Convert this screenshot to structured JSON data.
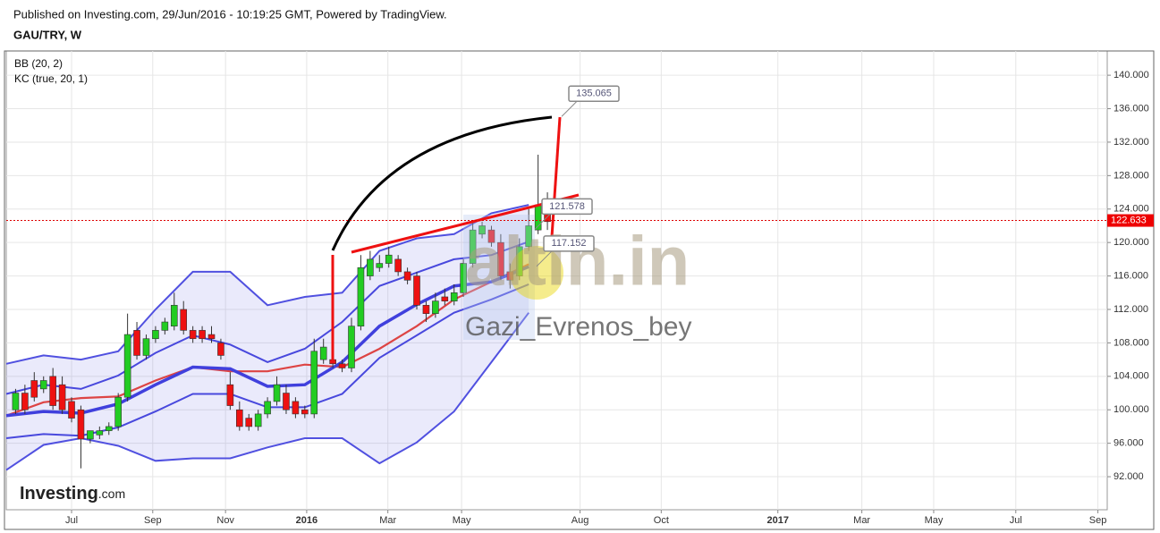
{
  "header": {
    "published": "Published on Investing.com, 29/Jun/2016 - 10:19:25 GMT, Powered by TradingView.",
    "symbol": "GAU/TRY, W"
  },
  "chart_data": {
    "type": "candlestick",
    "xlim": [
      0,
      118
    ],
    "ylim": [
      88.05,
      142.9
    ],
    "xticks": [
      {
        "value": 7.0,
        "label": "Jul"
      },
      {
        "value": 15.7,
        "label": "Sep"
      },
      {
        "value": 23.5,
        "label": "Nov"
      },
      {
        "value": 32.2,
        "label": "2016"
      },
      {
        "value": 40.9,
        "label": "Mar"
      },
      {
        "value": 48.8,
        "label": "May"
      },
      {
        "value": 61.5,
        "label": "Aug"
      },
      {
        "value": 70.2,
        "label": "Oct"
      },
      {
        "value": 82.7,
        "label": "2017"
      },
      {
        "value": 91.7,
        "label": "Mar"
      },
      {
        "value": 99.4,
        "label": "May"
      },
      {
        "value": 108.2,
        "label": "Jul"
      },
      {
        "value": 117.0,
        "label": "Sep"
      }
    ],
    "yticks": [
      {
        "value": 92,
        "label": "92.000"
      },
      {
        "value": 96,
        "label": "96.000"
      },
      {
        "value": 100,
        "label": "100.000"
      },
      {
        "value": 104,
        "label": "104.000"
      },
      {
        "value": 108,
        "label": "108.000"
      },
      {
        "value": 112,
        "label": "112.000"
      },
      {
        "value": 116,
        "label": "116.000"
      },
      {
        "value": 120,
        "label": "120.000"
      },
      {
        "value": 124,
        "label": "124.000"
      },
      {
        "value": 128,
        "label": "128.000"
      },
      {
        "value": 132,
        "label": "132.000"
      },
      {
        "value": 136,
        "label": "136.000"
      },
      {
        "value": 140,
        "label": "140.000"
      }
    ],
    "grid": true,
    "up_color": "#22cc22",
    "down_color": "#ee1111",
    "x": [
      1,
      2,
      3,
      4,
      5,
      6,
      7,
      8,
      9,
      10,
      11,
      12,
      13,
      14,
      15,
      16,
      17,
      18,
      19,
      20,
      21,
      22,
      23,
      24,
      25,
      26,
      27,
      28,
      29,
      30,
      31,
      32,
      33,
      34,
      35,
      36,
      37,
      38,
      39,
      40,
      41,
      42,
      43,
      44,
      45,
      46,
      47,
      48,
      49,
      50,
      51,
      52,
      53,
      54,
      55,
      56,
      57,
      58
    ],
    "open": [
      100,
      102,
      103.5,
      102.5,
      104,
      103,
      101,
      100,
      96.5,
      97,
      97.5,
      98,
      101.5,
      109.5,
      106.5,
      108.5,
      109.5,
      110,
      112,
      109.5,
      109.5,
      109,
      108,
      103,
      100,
      99,
      98,
      99.5,
      101,
      102,
      101,
      100,
      99.5,
      106,
      106,
      105.5,
      105,
      110,
      116,
      117,
      117.5,
      118,
      116.5,
      116,
      112.5,
      111.5,
      113.5,
      113,
      114,
      117.5,
      121,
      121.5,
      120,
      116.5,
      116,
      119.5,
      121.5,
      125
    ],
    "high": [
      102.5,
      103,
      104.5,
      104,
      105,
      104,
      101.5,
      100.5,
      97.5,
      98,
      98.5,
      102,
      111.5,
      110.5,
      109,
      110,
      111,
      114,
      113,
      110,
      110,
      110,
      108.5,
      104.5,
      101,
      99.5,
      100,
      101.5,
      104,
      103,
      101.5,
      100.5,
      108.5,
      108.5,
      107,
      106,
      111,
      118.5,
      119,
      118.5,
      119.5,
      118.5,
      117,
      116.5,
      113,
      114,
      114.5,
      115,
      118,
      122.5,
      122.5,
      122,
      121,
      117.5,
      120.5,
      124,
      130.5,
      126
    ],
    "low": [
      99.5,
      99.5,
      101,
      102,
      100,
      99.5,
      98.5,
      93,
      96,
      96.5,
      97,
      97.5,
      101,
      106,
      106,
      108,
      109,
      109.5,
      109,
      108,
      108,
      108,
      106,
      100,
      97.5,
      97.5,
      97.5,
      99,
      100.5,
      99.5,
      99,
      99,
      99,
      105.5,
      105,
      104.5,
      104.5,
      109.5,
      115.5,
      116.5,
      117,
      116,
      115,
      112,
      110.5,
      111,
      112.5,
      112.5,
      113.5,
      117,
      120.5,
      119.5,
      115.5,
      114.5,
      115.5,
      119,
      121,
      121.5
    ],
    "close": [
      102,
      100,
      101.5,
      103.5,
      100.5,
      100,
      99,
      96.5,
      97.5,
      97.5,
      98,
      101.5,
      109,
      106.5,
      108.5,
      109.5,
      110.5,
      112.5,
      109.5,
      108.5,
      108.5,
      108.5,
      106.5,
      100.5,
      98,
      98,
      99.5,
      101,
      103,
      100,
      99.5,
      99.5,
      107,
      107.5,
      105.5,
      105,
      110,
      117,
      118,
      117.5,
      118.5,
      116.5,
      115.5,
      112.5,
      111.5,
      113,
      113,
      114,
      117.5,
      121.5,
      122,
      120,
      116,
      115.5,
      119.5,
      122,
      124.5,
      122.5
    ],
    "indicators": [
      {
        "name": "BB (20, 2)",
        "color": "#5050e0",
        "middle_color": "#dd4444",
        "x": [
          0,
          4,
          8,
          12,
          16,
          20,
          24,
          28,
          32,
          36,
          40,
          44,
          48,
          52,
          56
        ],
        "upper": [
          105.5,
          106.5,
          106,
          107,
          112,
          116.5,
          116.5,
          112.5,
          113.5,
          114,
          119,
          120.5,
          121,
          123.5,
          124.5
        ],
        "middle": [
          99.3,
          100.9,
          101.4,
          101.6,
          103.5,
          105.1,
          104.6,
          104.6,
          105.4,
          105.1,
          107.3,
          110,
          113.2,
          115.3,
          117.4
        ],
        "lower": [
          92.8,
          95.8,
          96.6,
          95.7,
          93.9,
          94.2,
          94.2,
          95.5,
          96.6,
          96.6,
          93.6,
          96.1,
          99.8,
          105.7,
          111.6
        ]
      },
      {
        "name": "KC (true, 20, 1)",
        "color": "#4848dd",
        "middle_color": "#4040dd",
        "x": [
          0,
          4,
          8,
          12,
          16,
          20,
          24,
          28,
          32,
          36,
          40,
          44,
          48,
          52,
          56
        ],
        "upper": [
          101.9,
          103,
          102.5,
          104.1,
          106.8,
          108.9,
          107.8,
          105.7,
          107.3,
          110.5,
          114.8,
          116.4,
          118,
          118.5,
          120.1
        ],
        "middle": [
          99.3,
          99.8,
          99.6,
          100.7,
          103,
          105.1,
          104.9,
          102.8,
          103,
          105.7,
          110,
          112.6,
          114.8,
          115.3,
          117.1
        ],
        "lower": [
          96.6,
          97.1,
          96.9,
          97.9,
          99.8,
          101.9,
          101.9,
          100.3,
          100.3,
          101.9,
          106.2,
          108.9,
          111.6,
          113.2,
          115
        ]
      }
    ],
    "last_price": 122.633,
    "price_labels": [
      135.065,
      121.578,
      117.152
    ]
  },
  "watermark": {
    "site": "altin.in",
    "user": "Gazi_Evrenos_bey"
  },
  "logo": {
    "brand": "Investing",
    "suffix": ".com"
  }
}
